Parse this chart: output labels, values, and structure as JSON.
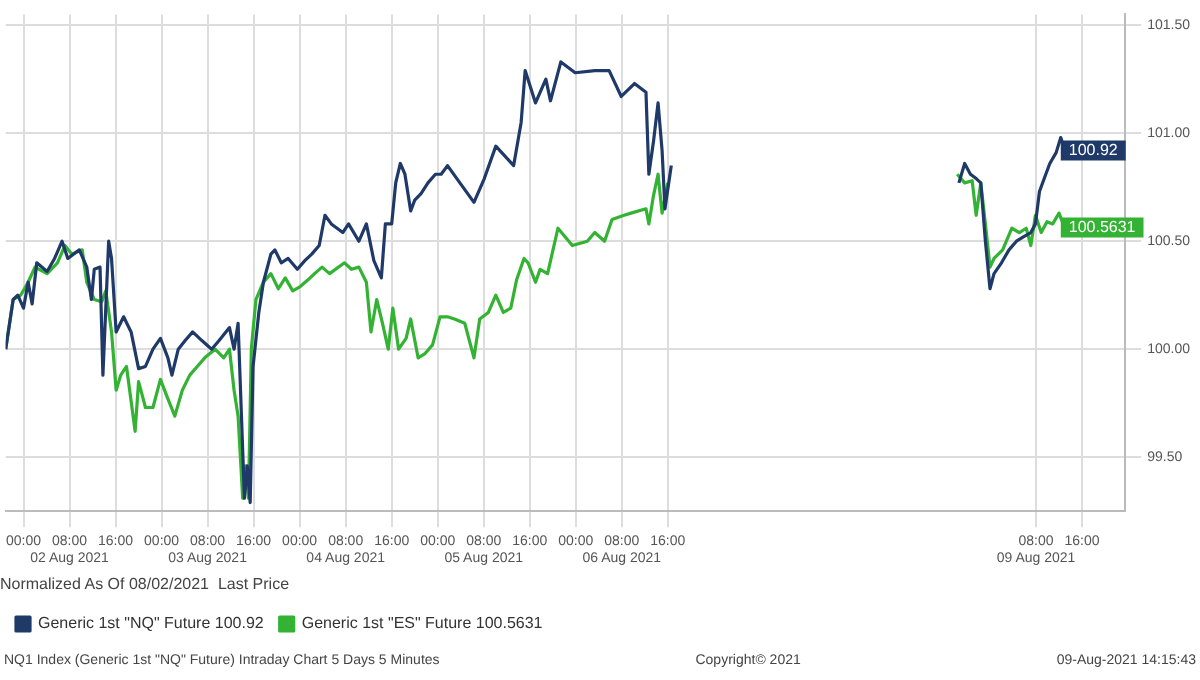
{
  "chart_data": {
    "type": "line",
    "legend_title": "Normalized As Of 08/02/2021  Last Price",
    "legend": "bottom",
    "grid": true,
    "marker": "none",
    "line_style": "solid",
    "xlim": [
      "2021-08-01T20:54",
      "2021-08-09T23:30"
    ],
    "xticks": [
      {
        "value": "2021-08-02T00:00",
        "label": "00:00"
      },
      {
        "value": "2021-08-02T08:00",
        "label": "08:00\n02 Aug 2021"
      },
      {
        "value": "2021-08-02T16:00",
        "label": "16:00"
      },
      {
        "value": "2021-08-03T00:00",
        "label": "00:00"
      },
      {
        "value": "2021-08-03T08:00",
        "label": "08:00\n03 Aug 2021"
      },
      {
        "value": "2021-08-03T16:00",
        "label": "16:00"
      },
      {
        "value": "2021-08-04T00:00",
        "label": "00:00"
      },
      {
        "value": "2021-08-04T08:00",
        "label": "08:00\n04 Aug 2021"
      },
      {
        "value": "2021-08-04T16:00",
        "label": "16:00"
      },
      {
        "value": "2021-08-05T00:00",
        "label": "00:00"
      },
      {
        "value": "2021-08-05T08:00",
        "label": "08:00\n05 Aug 2021"
      },
      {
        "value": "2021-08-05T16:00",
        "label": "16:00"
      },
      {
        "value": "2021-08-06T00:00",
        "label": "00:00"
      },
      {
        "value": "2021-08-06T08:00",
        "label": "08:00\n06 Aug 2021"
      },
      {
        "value": "2021-08-06T16:00",
        "label": "16:00"
      },
      {
        "value": "2021-08-09T08:00",
        "label": "08:00\n09 Aug 2021"
      },
      {
        "value": "2021-08-09T16:00",
        "label": "16:00"
      }
    ],
    "ylim": [
      99.25,
      101.55
    ],
    "yticks": [
      {
        "value": 99.5,
        "label": "99.50"
      },
      {
        "value": 100,
        "label": "100.00"
      },
      {
        "value": 100.5,
        "label": "100.50"
      },
      {
        "value": 101,
        "label": "101.00"
      },
      {
        "value": 101.5,
        "label": "101.50"
      }
    ],
    "series": [
      {
        "name": "Generic 1st \"NQ\" Future 100.92",
        "color": "#1f3a68",
        "x": [
          "2021-08-01T20:54",
          "2021-08-01T22:12",
          "2021-08-01T23:00",
          "2021-08-02T00:00",
          "2021-08-02T00:48",
          "2021-08-02T01:30",
          "2021-08-02T02:18",
          "2021-08-02T04:06",
          "2021-08-02T05:24",
          "2021-08-02T06:42",
          "2021-08-02T07:42",
          "2021-08-02T09:42",
          "2021-08-02T11:00",
          "2021-08-02T11:48",
          "2021-08-02T12:18",
          "2021-08-02T13:18",
          "2021-08-02T13:48",
          "2021-08-02T14:48",
          "2021-08-02T15:18",
          "2021-08-02T16:06",
          "2021-08-02T17:24",
          "2021-08-02T18:42",
          "2021-08-02T20:00",
          "2021-08-02T21:12",
          "2021-08-02T22:30",
          "2021-08-02T23:48",
          "2021-08-03T01:06",
          "2021-08-03T01:48",
          "2021-08-03T02:54",
          "2021-08-03T04:06",
          "2021-08-03T05:24",
          "2021-08-03T07:00",
          "2021-08-03T08:42",
          "2021-08-03T10:00",
          "2021-08-03T11:48",
          "2021-08-03T12:36",
          "2021-08-03T13:18",
          "2021-08-03T14:24",
          "2021-08-03T14:54",
          "2021-08-03T15:24",
          "2021-08-03T15:54",
          "2021-08-03T16:54",
          "2021-08-03T17:42",
          "2021-08-03T19:00",
          "2021-08-03T19:42",
          "2021-08-03T20:48",
          "2021-08-03T22:00",
          "2021-08-03T23:36",
          "2021-08-04T00:54",
          "2021-08-04T02:06",
          "2021-08-04T03:24",
          "2021-08-04T04:24",
          "2021-08-04T05:30",
          "2021-08-04T06:30",
          "2021-08-04T07:30",
          "2021-08-04T08:30",
          "2021-08-04T10:18",
          "2021-08-04T11:36",
          "2021-08-04T12:54",
          "2021-08-04T14:12",
          "2021-08-04T14:54",
          "2021-08-04T16:00",
          "2021-08-04T16:42",
          "2021-08-04T17:30",
          "2021-08-04T18:18",
          "2021-08-04T19:18",
          "2021-08-04T20:00",
          "2021-08-04T21:06",
          "2021-08-04T22:18",
          "2021-08-04T23:36",
          "2021-08-05T00:36",
          "2021-08-05T01:42",
          "2021-08-05T06:18",
          "2021-08-05T08:06",
          "2021-08-05T10:06",
          "2021-08-05T13:12",
          "2021-08-05T14:30",
          "2021-08-05T15:12",
          "2021-08-05T17:00",
          "2021-08-05T18:48",
          "2021-08-05T19:36",
          "2021-08-05T21:24",
          "2021-08-05T23:54",
          "2021-08-06T03:18",
          "2021-08-06T05:48",
          "2021-08-06T07:54",
          "2021-08-06T10:12",
          "2021-08-06T12:12",
          "2021-08-06T12:42",
          "2021-08-06T13:30",
          "2021-08-06T14:18",
          "2021-08-06T15:00",
          "2021-08-06T15:30",
          "2021-08-06T16:36",
          "2021-08-07T12:00",
          "2021-08-08T18:36",
          "2021-08-08T19:36",
          "2021-08-08T20:36",
          "2021-08-08T21:36",
          "2021-08-08T22:24",
          "2021-08-08T23:12",
          "2021-08-09T00:00",
          "2021-08-09T00:42",
          "2021-08-09T02:00",
          "2021-08-09T03:18",
          "2021-08-09T04:36",
          "2021-08-09T05:48",
          "2021-08-09T07:06",
          "2021-08-09T07:54",
          "2021-08-09T08:36",
          "2021-08-09T09:42",
          "2021-08-09T10:24",
          "2021-08-09T11:30",
          "2021-08-09T12:18",
          "2021-08-09T13:00"
        ],
        "values": [
          100.0,
          100.23,
          100.25,
          100.19,
          100.31,
          100.21,
          100.4,
          100.36,
          100.42,
          100.5,
          100.42,
          100.46,
          100.38,
          100.23,
          100.37,
          100.38,
          99.88,
          100.5,
          100.42,
          100.08,
          100.15,
          100.08,
          99.91,
          99.92,
          100.0,
          100.05,
          99.96,
          99.88,
          100.0,
          100.04,
          100.08,
          100.04,
          100.0,
          100.04,
          100.1,
          100.0,
          100.12,
          99.31,
          99.46,
          99.29,
          99.92,
          100.17,
          100.31,
          100.44,
          100.46,
          100.4,
          100.42,
          100.37,
          100.41,
          100.44,
          100.48,
          100.62,
          100.58,
          100.56,
          100.54,
          100.58,
          100.5,
          100.58,
          100.41,
          100.33,
          100.58,
          100.58,
          100.77,
          100.86,
          100.81,
          100.64,
          100.69,
          100.72,
          100.77,
          100.81,
          100.81,
          100.85,
          100.68,
          100.79,
          100.94,
          100.85,
          101.05,
          101.29,
          101.14,
          101.25,
          101.15,
          101.33,
          101.28,
          101.29,
          101.29,
          101.17,
          101.23,
          101.19,
          100.81,
          100.96,
          101.14,
          100.92,
          100.65,
          100.85,
          null,
          100.77,
          100.86,
          100.81,
          100.79,
          100.77,
          100.5,
          100.28,
          100.35,
          100.4,
          100.46,
          100.5,
          100.52,
          100.54,
          100.58,
          100.73,
          100.81,
          100.86,
          100.91,
          100.98,
          100.92
        ]
      },
      {
        "name": "Generic 1st \"ES\" Future 100.5631",
        "color": "#33b233",
        "x": [
          "2021-08-01T20:54",
          "2021-08-01T22:12",
          "2021-08-01T23:30",
          "2021-08-02T00:48",
          "2021-08-02T02:00",
          "2021-08-02T04:06",
          "2021-08-02T05:54",
          "2021-08-02T07:12",
          "2021-08-02T08:24",
          "2021-08-02T10:12",
          "2021-08-02T11:00",
          "2021-08-02T12:18",
          "2021-08-02T13:36",
          "2021-08-02T14:18",
          "2021-08-02T15:18",
          "2021-08-02T16:06",
          "2021-08-02T16:54",
          "2021-08-02T17:54",
          "2021-08-02T19:24",
          "2021-08-02T20:00",
          "2021-08-02T21:12",
          "2021-08-02T22:30",
          "2021-08-02T23:48",
          "2021-08-03T01:06",
          "2021-08-03T02:18",
          "2021-08-03T03:36",
          "2021-08-03T04:54",
          "2021-08-03T06:12",
          "2021-08-03T07:30",
          "2021-08-03T09:18",
          "2021-08-03T10:48",
          "2021-08-03T11:48",
          "2021-08-03T12:36",
          "2021-08-03T13:18",
          "2021-08-03T14:06",
          "2021-08-03T14:36",
          "2021-08-03T15:06",
          "2021-08-03T15:36",
          "2021-08-03T16:24",
          "2021-08-03T17:42",
          "2021-08-03T19:00",
          "2021-08-03T20:18",
          "2021-08-03T21:30",
          "2021-08-03T22:48",
          "2021-08-04T00:06",
          "2021-08-04T01:24",
          "2021-08-04T02:36",
          "2021-08-04T03:54",
          "2021-08-04T05:12",
          "2021-08-04T07:48",
          "2021-08-04T09:00",
          "2021-08-04T10:18",
          "2021-08-04T11:36",
          "2021-08-04T12:24",
          "2021-08-04T13:24",
          "2021-08-04T14:24",
          "2021-08-04T15:24",
          "2021-08-04T16:12",
          "2021-08-04T17:12",
          "2021-08-04T18:30",
          "2021-08-04T19:18",
          "2021-08-04T20:36",
          "2021-08-04T21:48",
          "2021-08-04T23:06",
          "2021-08-05T00:24",
          "2021-08-05T01:42",
          "2021-08-05T02:54",
          "2021-08-05T04:42",
          "2021-08-05T06:18",
          "2021-08-05T07:18",
          "2021-08-05T08:48",
          "2021-08-05T10:06",
          "2021-08-05T11:24",
          "2021-08-05T12:42",
          "2021-08-05T13:42",
          "2021-08-05T15:00",
          "2021-08-05T15:42",
          "2021-08-05T17:00",
          "2021-08-05T17:48",
          "2021-08-05T19:06",
          "2021-08-05T20:54",
          "2021-08-05T23:24",
          "2021-08-06T02:00",
          "2021-08-06T03:18",
          "2021-08-06T05:00",
          "2021-08-06T06:18",
          "2021-08-06T08:24",
          "2021-08-06T09:36",
          "2021-08-06T12:12",
          "2021-08-06T12:42",
          "2021-08-06T13:30",
          "2021-08-06T14:18",
          "2021-08-06T15:00",
          "2021-08-06T16:00",
          "2021-08-07T12:00",
          "2021-08-08T18:18",
          "2021-08-08T19:36",
          "2021-08-08T20:54",
          "2021-08-08T21:36",
          "2021-08-08T22:24",
          "2021-08-08T23:12",
          "2021-08-09T00:00",
          "2021-08-09T00:42",
          "2021-08-09T02:12",
          "2021-08-09T03:48",
          "2021-08-09T05:06",
          "2021-08-09T06:18",
          "2021-08-09T07:06",
          "2021-08-09T07:54",
          "2021-08-09T08:54",
          "2021-08-09T09:54",
          "2021-08-09T10:54",
          "2021-08-09T12:00",
          "2021-08-09T13:00"
        ],
        "values": [
          100.0,
          100.23,
          100.25,
          100.31,
          100.38,
          100.35,
          100.4,
          100.48,
          100.44,
          100.46,
          100.31,
          100.23,
          100.22,
          100.27,
          100.08,
          99.81,
          99.88,
          99.92,
          99.62,
          99.85,
          99.73,
          99.73,
          99.86,
          99.77,
          99.69,
          99.81,
          99.88,
          99.92,
          99.96,
          100.0,
          99.96,
          100.0,
          99.81,
          99.69,
          99.31,
          99.46,
          99.31,
          100.0,
          100.23,
          100.31,
          100.35,
          100.28,
          100.33,
          100.27,
          100.29,
          100.32,
          100.35,
          100.38,
          100.35,
          100.4,
          100.37,
          100.38,
          100.31,
          100.08,
          100.23,
          100.12,
          100.0,
          100.19,
          100.0,
          100.05,
          100.14,
          99.96,
          99.98,
          100.02,
          100.15,
          100.15,
          100.14,
          100.12,
          99.96,
          100.14,
          100.17,
          100.25,
          100.17,
          100.19,
          100.32,
          100.42,
          100.4,
          100.31,
          100.37,
          100.35,
          100.56,
          100.48,
          100.5,
          100.54,
          100.5,
          100.6,
          100.62,
          100.63,
          100.65,
          100.58,
          100.71,
          100.81,
          100.63,
          100.77,
          null,
          100.81,
          100.77,
          100.78,
          100.62,
          100.77,
          100.58,
          100.38,
          100.42,
          100.46,
          100.56,
          100.54,
          100.56,
          100.48,
          100.62,
          100.54,
          100.59,
          100.58,
          100.63,
          100.56
        ]
      }
    ],
    "annotations": [
      {
        "text": "100.92",
        "x": "2021-08-09T13:00",
        "y": 100.92
      },
      {
        "text": "100.5631",
        "x": "2021-08-09T13:00",
        "y": 100.5631
      },
      "NQ1 Index (Generic 1st \"NQ\" Future) Intraday Chart 5 Days 5 Minutes",
      "Copyright© 2021",
      "09-Aug-2021 14:15:43"
    ]
  }
}
